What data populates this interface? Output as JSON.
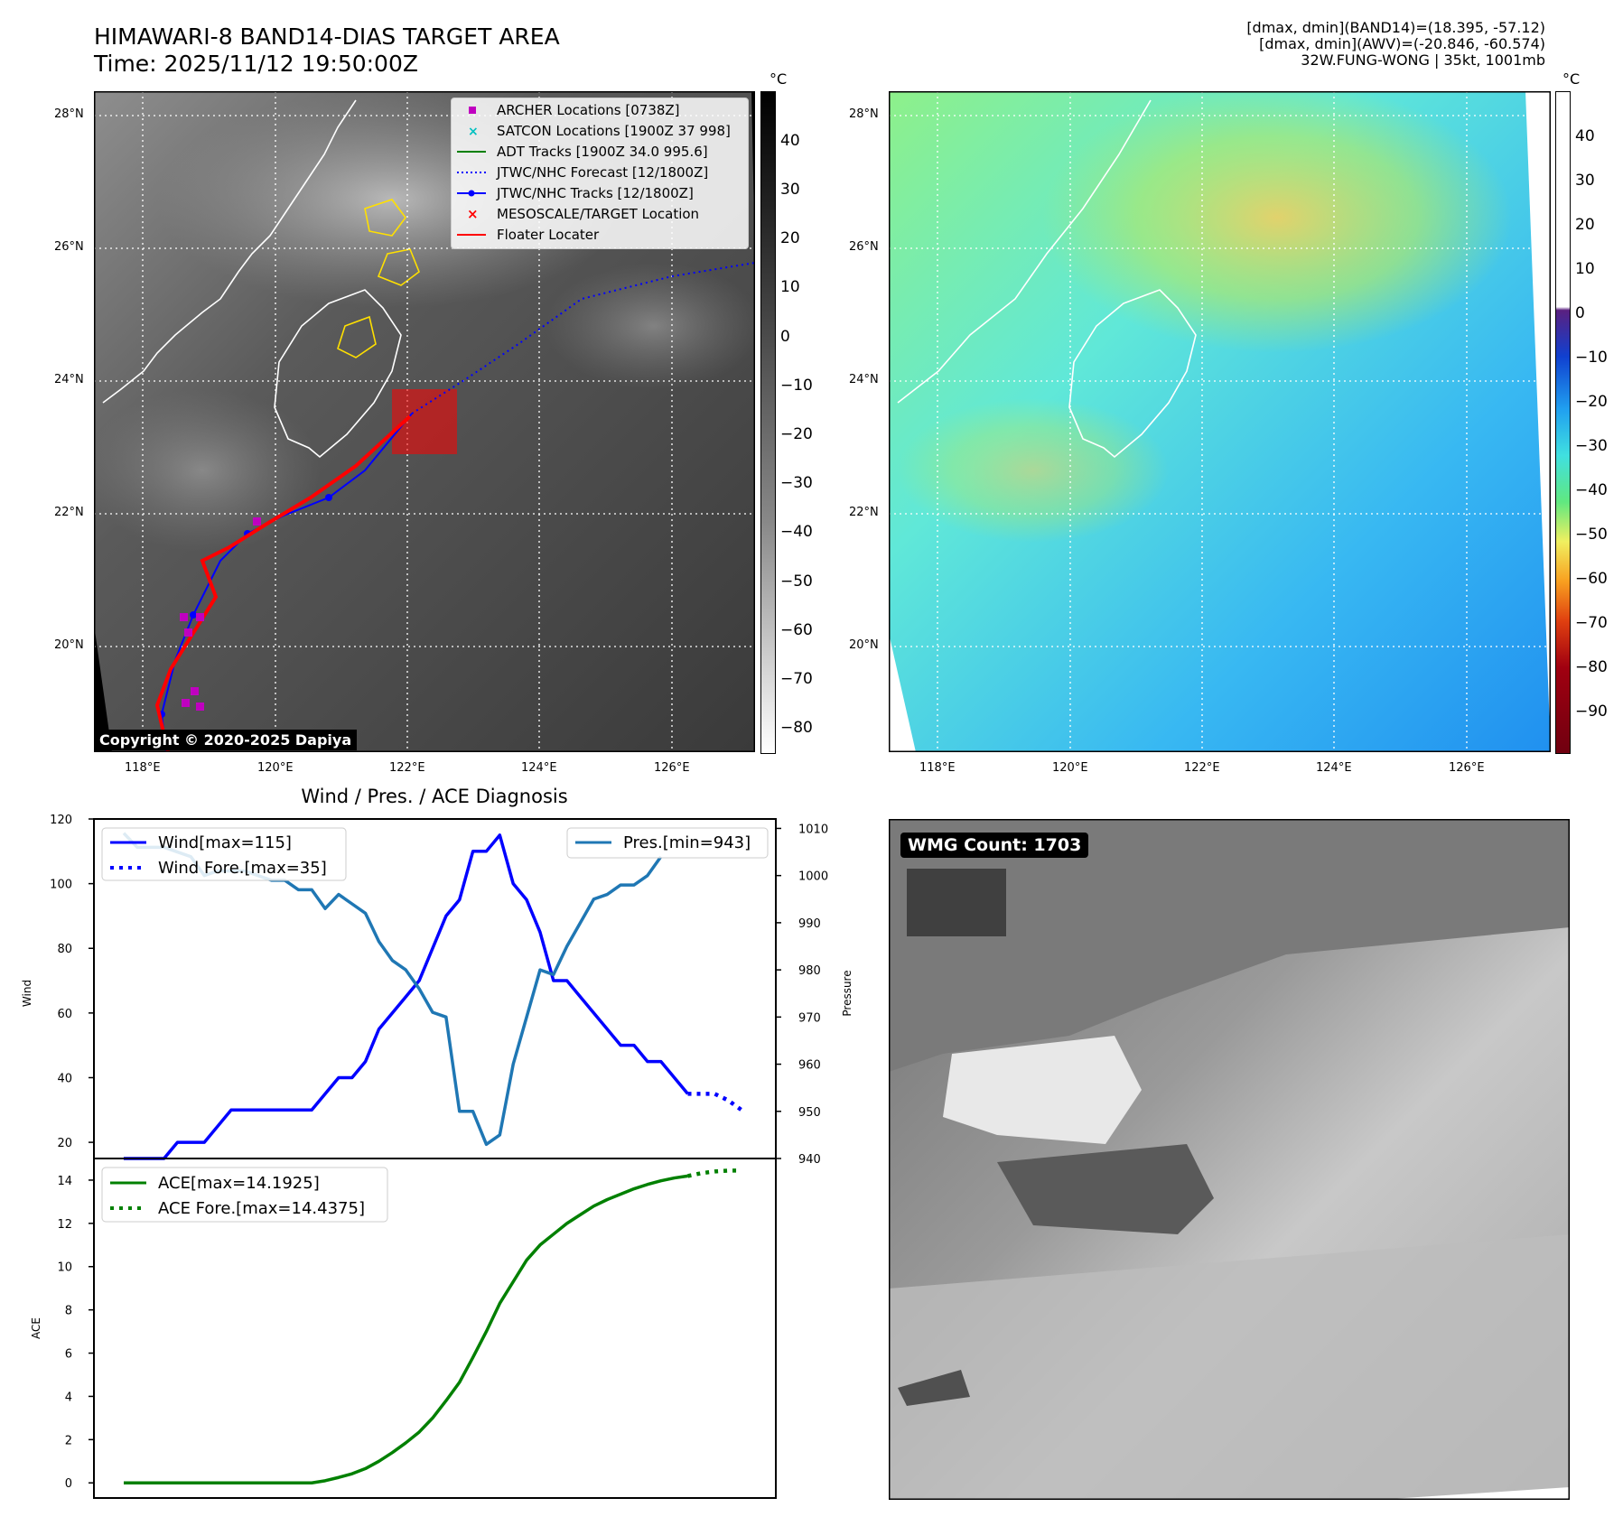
{
  "header": {
    "title_line1": "HIMAWARI-8 BAND14-DIAS TARGET AREA",
    "title_line2": "Time: 2025/11/12 19:50:00Z",
    "info_line1": "[dmax, dmin](BAND14)=(18.395, -57.12)",
    "info_line2": "[dmax, dmin](AWV)=(-20.846, -60.574)",
    "info_line3": "32W.FUNG-WONG | 35kt, 1001mb"
  },
  "map_axes": {
    "lat_labels": [
      "28°N",
      "26°N",
      "24°N",
      "22°N",
      "20°N"
    ],
    "lon_labels": [
      "118°E",
      "120°E",
      "122°E",
      "124°E",
      "126°E"
    ]
  },
  "left_map": {
    "copyright": "Copyright © 2020-2025 Dapiya",
    "colorbar_unit": "°C",
    "colorbar_ticks": [
      "40",
      "30",
      "20",
      "10",
      "0",
      "−10",
      "−20",
      "−30",
      "−40",
      "−50",
      "−60",
      "−70",
      "−80"
    ],
    "legend": [
      {
        "label": "ARCHER Locations [0738Z]",
        "color": "#c000c0",
        "marker": "square"
      },
      {
        "label": "SATCON Locations [1900Z 37 998]",
        "color": "#00c0c0",
        "marker": "x"
      },
      {
        "label": "ADT Tracks [1900Z 34.0 995.6]",
        "color": "#008000",
        "marker": "line"
      },
      {
        "label": "JTWC/NHC Forecast [12/1800Z]",
        "color": "#0000ff",
        "marker": "dotted"
      },
      {
        "label": "JTWC/NHC Tracks [12/1800Z]",
        "color": "#0000ff",
        "marker": "line-dot"
      },
      {
        "label": "MESOSCALE/TARGET Location",
        "color": "#ff0000",
        "marker": "x"
      },
      {
        "label": "Floater Locater",
        "color": "#ff0000",
        "marker": "line"
      }
    ]
  },
  "right_map": {
    "colorbar_unit": "°C",
    "colorbar_ticks": [
      "40",
      "30",
      "20",
      "10",
      "0",
      "−10",
      "−20",
      "−30",
      "−40",
      "−50",
      "−60",
      "−70",
      "−80",
      "−90"
    ]
  },
  "wmg_panel": {
    "label": "WMG Count: 1703"
  },
  "chart_data": [
    {
      "type": "line",
      "title": "Wind / Pres. / ACE Diagnosis",
      "ylabel": "Wind",
      "y2label": "Pressure",
      "ylim": [
        15,
        120
      ],
      "y2lim": [
        940,
        1012
      ],
      "yticks": [
        "20",
        "40",
        "60",
        "80",
        "100",
        "120"
      ],
      "y2ticks": [
        "940",
        "950",
        "960",
        "970",
        "980",
        "990",
        "1000",
        "1010"
      ],
      "legend_left": [
        "Wind[max=115]",
        "Wind Fore.[max=35]"
      ],
      "legend_right": [
        "Pres.[min=943]"
      ],
      "series": [
        {
          "name": "Wind[max=115]",
          "color": "#0000ff",
          "style": "solid",
          "axis": "left",
          "values": [
            15,
            15,
            15,
            15,
            20,
            20,
            20,
            25,
            30,
            30,
            30,
            30,
            30,
            30,
            30,
            35,
            40,
            40,
            45,
            55,
            60,
            65,
            70,
            80,
            90,
            95,
            110,
            110,
            115,
            100,
            95,
            85,
            70,
            70,
            65,
            60,
            55,
            50,
            50,
            45,
            45,
            40,
            35
          ]
        },
        {
          "name": "Wind Fore.[max=35]",
          "color": "#0000ff",
          "style": "dotted",
          "axis": "left",
          "offset": 42,
          "values": [
            35,
            35,
            35,
            33,
            30
          ]
        },
        {
          "name": "Pres.[min=943]",
          "color": "#1f77b4",
          "style": "solid",
          "axis": "right",
          "values": [
            1009,
            1006,
            1006,
            1006,
            1005,
            1004,
            1000,
            1001,
            1001,
            1001,
            1000,
            999,
            999,
            997,
            997,
            993,
            996,
            994,
            992,
            986,
            982,
            980,
            976,
            971,
            970,
            950,
            950,
            943,
            945,
            960,
            970,
            980,
            979,
            985,
            990,
            995,
            996,
            998,
            998,
            1000,
            1004
          ]
        }
      ]
    },
    {
      "type": "line",
      "ylabel": "ACE",
      "ylim": [
        -0.7,
        15
      ],
      "yticks": [
        "0",
        "2",
        "4",
        "6",
        "8",
        "10",
        "12",
        "14"
      ],
      "legend": [
        "ACE[max=14.1925]",
        "ACE Fore.[max=14.4375]"
      ],
      "series": [
        {
          "name": "ACE[max=14.1925]",
          "color": "#008000",
          "style": "solid",
          "values": [
            0,
            0,
            0,
            0,
            0,
            0,
            0,
            0,
            0,
            0,
            0,
            0,
            0,
            0,
            0,
            0.1,
            0.25,
            0.42,
            0.66,
            1.0,
            1.4,
            1.85,
            2.35,
            3.0,
            3.8,
            4.65,
            5.8,
            7.0,
            8.3,
            9.3,
            10.3,
            11.0,
            11.5,
            12.0,
            12.4,
            12.8,
            13.1,
            13.35,
            13.6,
            13.8,
            13.97,
            14.1,
            14.19
          ]
        },
        {
          "name": "ACE Fore.[max=14.4375]",
          "color": "#008000",
          "style": "dotted",
          "offset": 42,
          "values": [
            14.19,
            14.32,
            14.4,
            14.44,
            14.44
          ]
        }
      ]
    }
  ]
}
